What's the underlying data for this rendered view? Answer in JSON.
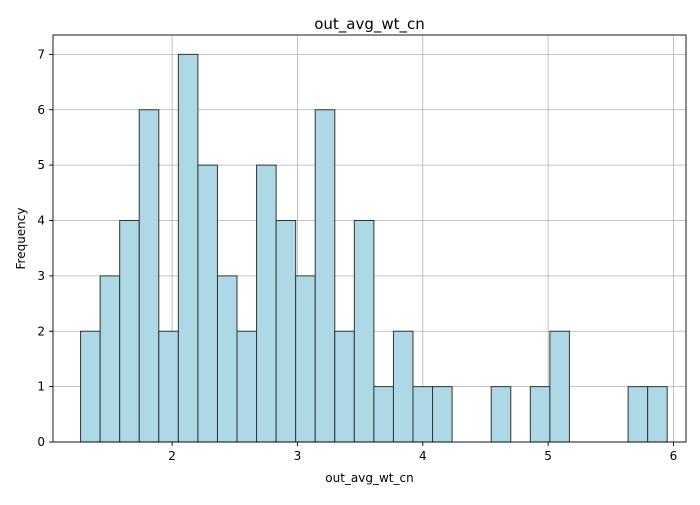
{
  "chart_data": {
    "type": "bar",
    "title": "out_avg_wt_cn",
    "xlabel": "out_avg_wt_cn",
    "ylabel": "Frequency",
    "xlim": [
      1.05,
      6.1
    ],
    "ylim": [
      0,
      7.35
    ],
    "x_ticks": [
      2,
      3,
      4,
      5,
      6
    ],
    "y_ticks": [
      0,
      1,
      2,
      3,
      4,
      5,
      6,
      7
    ],
    "grid": true,
    "legend": "none",
    "bin_start": 1.27,
    "bin_width": 0.156,
    "values": [
      2,
      3,
      4,
      6,
      2,
      7,
      5,
      3,
      2,
      5,
      4,
      3,
      6,
      2,
      4,
      1,
      2,
      1,
      1,
      0,
      0,
      1,
      0,
      1,
      2,
      0,
      0,
      0,
      1,
      1
    ],
    "colors": {
      "bar_fill": "#add8e6",
      "bar_edge": "#333333",
      "grid": "#b0b0b0",
      "axis": "#000000"
    }
  }
}
